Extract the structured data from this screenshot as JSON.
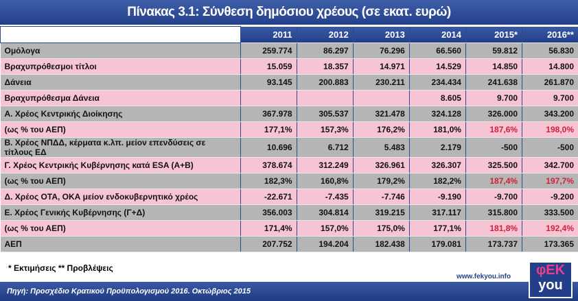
{
  "title": "Πίνακας 3.1: Σύνθεση δημόσιου χρέους (σε εκατ. ευρώ)",
  "columns": [
    "2011",
    "2012",
    "2013",
    "2014",
    "2015*",
    "2016**"
  ],
  "rows": [
    {
      "label": "Ομόλογα",
      "values": [
        "259.774",
        "86.297",
        "76.296",
        "66.560",
        "59.812",
        "56.830"
      ]
    },
    {
      "label": "Βραχυπρόθεσμοι τίτλοι",
      "values": [
        "15.059",
        "18.357",
        "14.971",
        "14.529",
        "14.850",
        "14.800"
      ]
    },
    {
      "label": "Δάνεια",
      "values": [
        "93.145",
        "200.883",
        "230.211",
        "234.434",
        "241.638",
        "261.870"
      ]
    },
    {
      "label": "Βραχυπρόθεσμα Δάνεια",
      "values": [
        "",
        "",
        "",
        "8.605",
        "9.700",
        "9.700"
      ]
    },
    {
      "label": "Α. Χρέος Κεντρικής Διοίκησης",
      "values": [
        "367.978",
        "305.537",
        "321.478",
        "324.128",
        "326.000",
        "343.200"
      ]
    },
    {
      "label": "(ως % του ΑΕΠ)",
      "values": [
        "177,1%",
        "157,3%",
        "176,2%",
        "181,0%",
        "187,6%",
        "198,0%"
      ]
    },
    {
      "label": "Β. Χρέος ΝΠΔΔ, κέρματα κ.λπ. μείον επενδύσεις σε τίτλους ΕΔ",
      "values": [
        "10.696",
        "6.712",
        "5.483",
        "2.179",
        "-500",
        "-500"
      ]
    },
    {
      "label": "Γ. Χρέος Κεντρικής Κυβέρνησης κατά ESA (Α+Β)",
      "values": [
        "378.674",
        "312.249",
        "326.961",
        "326.307",
        "325.500",
        "342.700"
      ]
    },
    {
      "label": "(ως % του ΑΕΠ)",
      "values": [
        "182,3%",
        "160,8%",
        "179,2%",
        "182,2%",
        "187,4%",
        "197,7%"
      ]
    },
    {
      "label": "Δ. Χρέος ΟΤΑ, ΟΚΑ μείον ενδοκυβερνητικό χρέος",
      "values": [
        "-22.671",
        "-7.435",
        "-7.746",
        "-9.190",
        "-9.700",
        "-9.200"
      ]
    },
    {
      "label": "Ε. Χρέος Γενικής Κυβέρνησης (Γ+Δ)",
      "values": [
        "356.003",
        "304.814",
        "319.215",
        "317.117",
        "315.800",
        "333.500"
      ]
    },
    {
      "label": "(ως % του ΑΕΠ)",
      "values": [
        "171,4%",
        "157,0%",
        "175,0%",
        "177,1%",
        "181,8%",
        "192,4%"
      ]
    },
    {
      "label": "ΑΕΠ",
      "values": [
        "207.752",
        "194.204",
        "182.438",
        "179.081",
        "173.737",
        "173.365"
      ]
    }
  ],
  "notes": "* Εκτιμήσεις  ** Προβλέψεις",
  "url": "www.fekyou.info",
  "source": "Πηγή: Προσχέδιο Κρατικού Προϋπολογισμού 2016. Οκτώβριος 2015",
  "logo": {
    "top": "φEK",
    "bottom": "you"
  },
  "colors": {
    "header": "#233f8a",
    "gray_row": "#b5b5b5",
    "pink_row": "#f7c4d4",
    "highlight": "#d0203a"
  }
}
